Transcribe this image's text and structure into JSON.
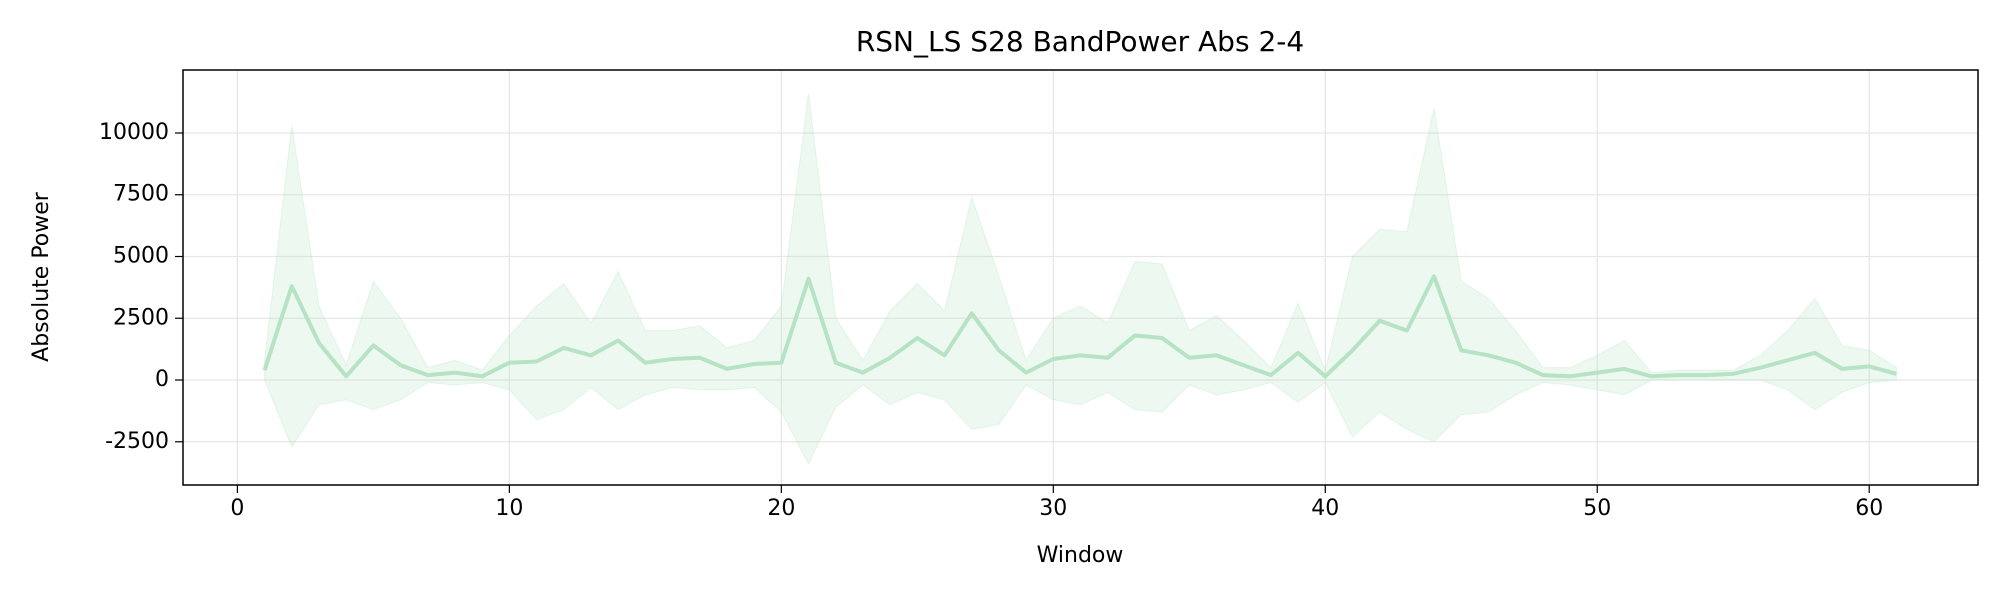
{
  "chart_data": {
    "type": "line",
    "title": "RSN_LS S28 BandPower Abs 2-4",
    "x_label": "Window",
    "y_label": "Absolute Power",
    "x": [
      1,
      2,
      3,
      4,
      5,
      6,
      7,
      8,
      9,
      10,
      11,
      12,
      13,
      14,
      15,
      16,
      17,
      18,
      19,
      20,
      21,
      22,
      23,
      24,
      25,
      26,
      27,
      28,
      29,
      30,
      31,
      32,
      33,
      34,
      35,
      36,
      37,
      38,
      39,
      40,
      41,
      42,
      43,
      44,
      45,
      46,
      47,
      48,
      49,
      50,
      51,
      52,
      53,
      54,
      55,
      56,
      57,
      58,
      59,
      60,
      61
    ],
    "series": [
      {
        "color": "#b5e3c4",
        "values": [
          400,
          3800,
          1500,
          150,
          1400,
          600,
          200,
          300,
          150,
          700,
          750,
          1300,
          1000,
          1600,
          700,
          850,
          900,
          450,
          650,
          700,
          4100,
          700,
          300,
          900,
          1700,
          1000,
          2700,
          1200,
          300,
          850,
          1000,
          900,
          1800,
          1700,
          900,
          1000,
          600,
          200,
          1100,
          150,
          1200,
          2400,
          2000,
          4200,
          1200,
          1000,
          700,
          200,
          150,
          300,
          450,
          150,
          200,
          200,
          250,
          500,
          800,
          1100,
          450,
          550,
          250
        ],
        "upper": [
          800,
          10300,
          3000,
          600,
          4000,
          2500,
          500,
          800,
          400,
          1800,
          3000,
          3900,
          2300,
          4400,
          2000,
          2000,
          2200,
          1300,
          1600,
          3000,
          11600,
          2500,
          800,
          2800,
          3900,
          2800,
          7400,
          4200,
          800,
          2500,
          3000,
          2300,
          4800,
          4700,
          2000,
          2600,
          1600,
          500,
          3100,
          400,
          5000,
          6100,
          6000,
          11000,
          4000,
          3300,
          2000,
          500,
          500,
          1000,
          1600,
          300,
          400,
          400,
          400,
          1000,
          2000,
          3300,
          1400,
          1200,
          500
        ],
        "lower": [
          0,
          -2700,
          -1000,
          -800,
          -1200,
          -800,
          -100,
          -200,
          -100,
          -400,
          -1600,
          -1200,
          -300,
          -1200,
          -600,
          -300,
          -400,
          -400,
          -300,
          -1300,
          -3400,
          -1100,
          -200,
          -1000,
          -500,
          -800,
          -2000,
          -1800,
          -200,
          -800,
          -1000,
          -500,
          -1200,
          -1300,
          -200,
          -600,
          -400,
          -100,
          -900,
          -100,
          -2300,
          -1300,
          -2000,
          -2500,
          -1400,
          -1300,
          -600,
          -100,
          -200,
          -400,
          -600,
          0,
          0,
          0,
          0,
          0,
          -400,
          -1200,
          -500,
          -100,
          0
        ]
      }
    ],
    "xlim": [
      -2,
      64
    ],
    "xticks": [
      0,
      10,
      20,
      30,
      40,
      50,
      60
    ],
    "ylim": [
      -4250,
      12550
    ],
    "yticks": [
      -2500,
      0,
      2500,
      5000,
      7500,
      10000
    ],
    "grid": true
  }
}
